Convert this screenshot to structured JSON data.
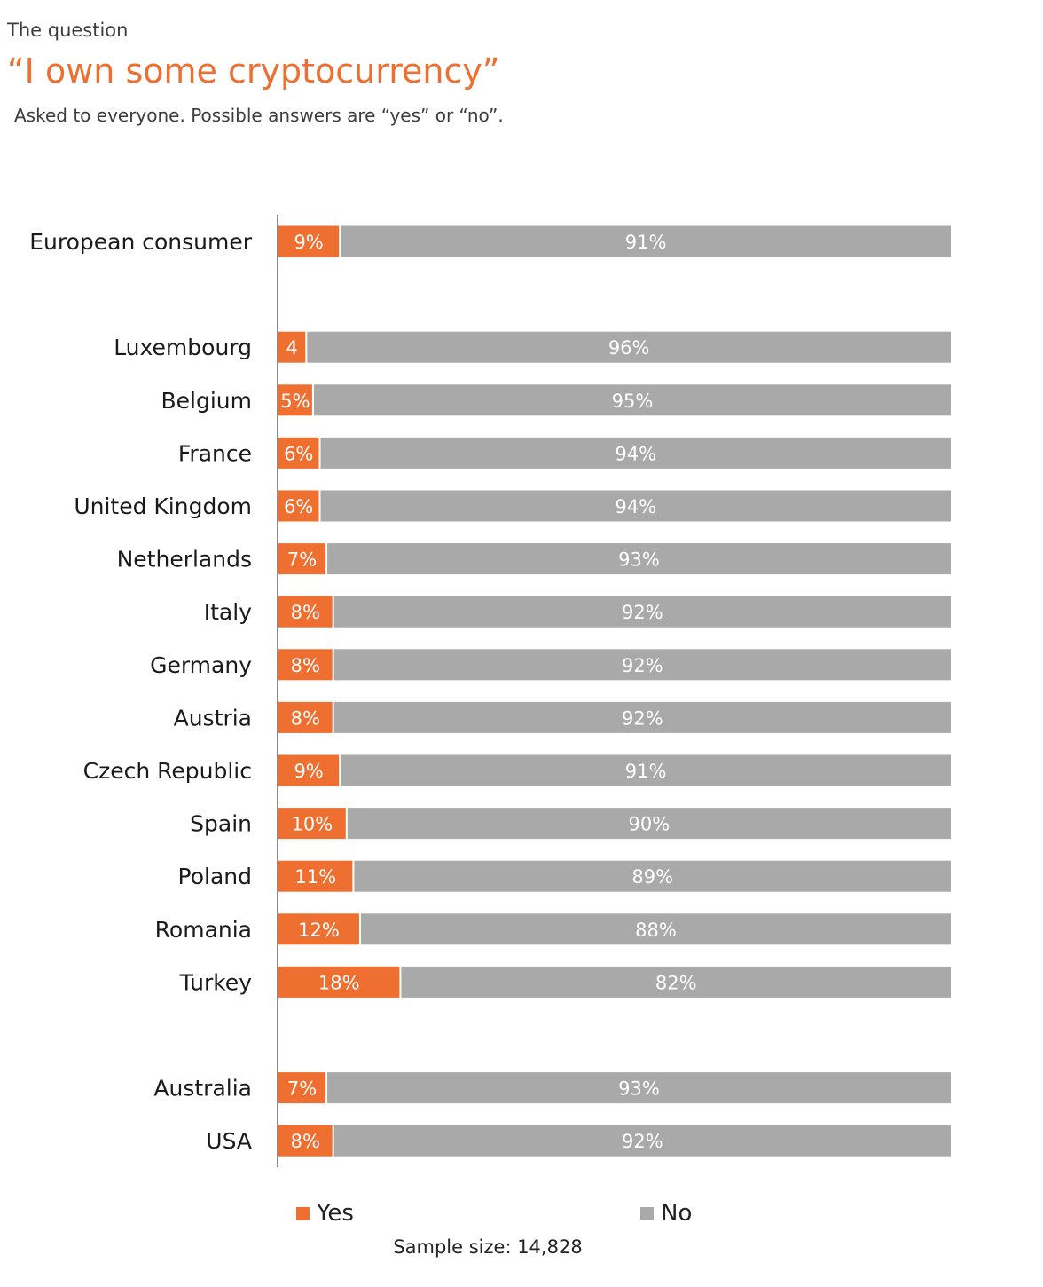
{
  "header": {
    "kicker": "The question",
    "title": "“I own some cryptocurrency”",
    "subtitle": "Asked to everyone. Possible answers are “yes” or “no”."
  },
  "colors": {
    "yes": "#ee6f2f",
    "no": "#a9a9a9",
    "title": "#ee6f2f",
    "axis": "#8a8a8a"
  },
  "chart_data": {
    "type": "bar",
    "orientation": "horizontal",
    "stacked": true,
    "percent_stacked": true,
    "categories": [
      "European consumer",
      "Luxembourg",
      "Belgium",
      "France",
      "United Kingdom",
      "Netherlands",
      "Italy",
      "Germany",
      "Austria",
      "Czech Republic",
      "Spain",
      "Poland",
      "Romania",
      "Turkey",
      "Australia",
      "USA"
    ],
    "groups": [
      [
        "European consumer"
      ],
      [
        "Luxembourg",
        "Belgium",
        "France",
        "United Kingdom",
        "Netherlands",
        "Italy",
        "Germany",
        "Austria",
        "Czech Republic",
        "Spain",
        "Poland",
        "Romania",
        "Turkey"
      ],
      [
        "Australia",
        "USA"
      ]
    ],
    "series": [
      {
        "name": "Yes",
        "values": [
          9,
          4,
          5,
          6,
          6,
          7,
          8,
          8,
          8,
          9,
          10,
          11,
          12,
          18,
          7,
          8
        ],
        "labels": [
          "9%",
          "4",
          "5%",
          "6%",
          "6%",
          "7%",
          "8%",
          "8%",
          "8%",
          "9%",
          "10%",
          "11%",
          "12%",
          "18%",
          "7%",
          "8%"
        ]
      },
      {
        "name": "No",
        "values": [
          91,
          96,
          95,
          94,
          94,
          93,
          92,
          92,
          92,
          91,
          90,
          89,
          88,
          82,
          93,
          92
        ],
        "labels": [
          "91%",
          "96%",
          "95%",
          "94%",
          "94%",
          "93%",
          "92%",
          "92%",
          "92%",
          "91%",
          "90%",
          "89%",
          "88%",
          "82%",
          "93%",
          "92%"
        ]
      }
    ],
    "xlim": [
      0,
      100
    ],
    "grid": false,
    "legend": "bottom"
  },
  "legend": {
    "yes_label": "Yes",
    "no_label": "No"
  },
  "footnote": "Sample size: 14,828"
}
